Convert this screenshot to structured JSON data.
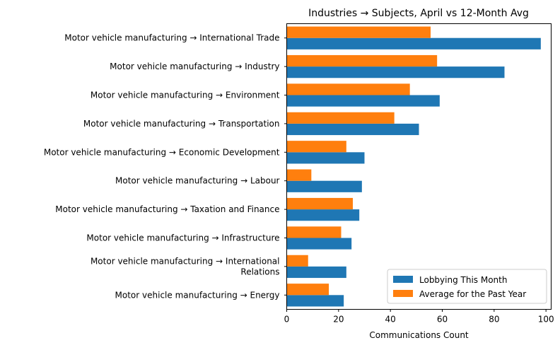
{
  "chart_data": {
    "type": "bar",
    "orientation": "horizontal",
    "title": "Industries → Subjects, April vs 12-Month Avg",
    "xlabel": "Communications Count",
    "ylabel": "",
    "xlim": [
      0,
      102
    ],
    "xticks": [
      0,
      20,
      40,
      60,
      80,
      100
    ],
    "grid": false,
    "legend_position": "lower-right",
    "categories": [
      [
        "Motor vehicle manufacturing → International Trade"
      ],
      [
        "Motor vehicle manufacturing → Industry"
      ],
      [
        "Motor vehicle manufacturing → Environment"
      ],
      [
        "Motor vehicle manufacturing → Transportation"
      ],
      [
        "Motor vehicle manufacturing → Economic Development"
      ],
      [
        "Motor vehicle manufacturing → Labour"
      ],
      [
        "Motor vehicle manufacturing → Taxation and Finance"
      ],
      [
        "Motor vehicle manufacturing → Infrastructure"
      ],
      [
        "Motor vehicle manufacturing → International",
        "Relations"
      ],
      [
        "Motor vehicle manufacturing → Energy"
      ]
    ],
    "series": [
      {
        "name": "Lobbying This Month",
        "color": "#1f77b4",
        "values": [
          98,
          84,
          59,
          51,
          30,
          29,
          28,
          25,
          23,
          22
        ]
      },
      {
        "name": "Average for the Past Year",
        "color": "#ff7f0e",
        "values": [
          55.5,
          58,
          47.5,
          41.5,
          23,
          9.5,
          25.5,
          21,
          8.25,
          16.25
        ]
      }
    ]
  }
}
